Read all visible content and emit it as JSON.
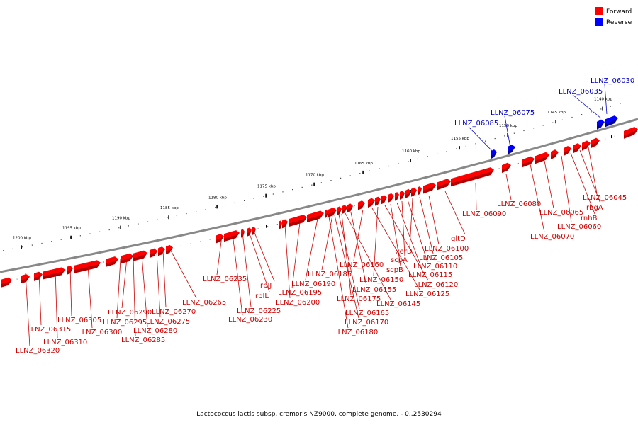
{
  "legend": [
    {
      "label": "Forward",
      "color": "#ff0000"
    },
    {
      "label": "Reverse",
      "color": "#0000ff"
    }
  ],
  "colors": {
    "forward": "#ff0000",
    "forward_dark": "#b00000",
    "reverse": "#0000ff",
    "reverse_dark": "#0000a0",
    "backbone": "#888888",
    "forward_label": "#cc0000",
    "reverse_label": "#0000cc"
  },
  "kbp_ticks": [
    "1200 kbp",
    "1195 kbp",
    "1190 kbp",
    "1185 kbp",
    "1180 kbp",
    "1175 kbp",
    "1170 kbp",
    "1165 kbp",
    "1160 kbp",
    "1155 kbp",
    "1150 kbp",
    "1145 kbp",
    "1140 kbp"
  ],
  "gene_labels": [
    {
      "text": "LLNZ_06030",
      "strand": "reverse"
    },
    {
      "text": "LLNZ_06035",
      "strand": "reverse"
    },
    {
      "text": "LLNZ_06075",
      "strand": "reverse"
    },
    {
      "text": "LLNZ_06085",
      "strand": "reverse"
    },
    {
      "text": "LLNZ_06045",
      "strand": "forward"
    },
    {
      "text": "rbgA",
      "strand": "forward"
    },
    {
      "text": "rnhB",
      "strand": "forward"
    },
    {
      "text": "LLNZ_06060",
      "strand": "forward"
    },
    {
      "text": "LLNZ_06065",
      "strand": "forward"
    },
    {
      "text": "LLNZ_06070",
      "strand": "forward"
    },
    {
      "text": "LLNZ_06080",
      "strand": "forward"
    },
    {
      "text": "LLNZ_06090",
      "strand": "forward"
    },
    {
      "text": "gltD",
      "strand": "forward"
    },
    {
      "text": "LLNZ_06100",
      "strand": "forward"
    },
    {
      "text": "LLNZ_06105",
      "strand": "forward"
    },
    {
      "text": "xerD",
      "strand": "forward"
    },
    {
      "text": "LLNZ_06110",
      "strand": "forward"
    },
    {
      "text": "scpA",
      "strand": "forward"
    },
    {
      "text": "LLNZ_06115",
      "strand": "forward"
    },
    {
      "text": "scpB",
      "strand": "forward"
    },
    {
      "text": "LLNZ_06120",
      "strand": "forward"
    },
    {
      "text": "LLNZ_06150",
      "strand": "forward"
    },
    {
      "text": "LLNZ_06125",
      "strand": "forward"
    },
    {
      "text": "LLNZ_06160",
      "strand": "forward"
    },
    {
      "text": "LLNZ_06155",
      "strand": "forward"
    },
    {
      "text": "LLNZ_06145",
      "strand": "forward"
    },
    {
      "text": "LLNZ_06185",
      "strand": "forward"
    },
    {
      "text": "LLNZ_06175",
      "strand": "forward"
    },
    {
      "text": "LLNZ_06165",
      "strand": "forward"
    },
    {
      "text": "LLNZ_06170",
      "strand": "forward"
    },
    {
      "text": "LLNZ_06180",
      "strand": "forward"
    },
    {
      "text": "LLNZ_06190",
      "strand": "forward"
    },
    {
      "text": "LLNZ_06195",
      "strand": "forward"
    },
    {
      "text": "LLNZ_06200",
      "strand": "forward"
    },
    {
      "text": "rpIJ",
      "strand": "forward"
    },
    {
      "text": "rpIL",
      "strand": "forward"
    },
    {
      "text": "LLNZ_06225",
      "strand": "forward"
    },
    {
      "text": "LLNZ_06230",
      "strand": "forward"
    },
    {
      "text": "LLNZ_06235",
      "strand": "forward"
    },
    {
      "text": "LLNZ_06265",
      "strand": "forward"
    },
    {
      "text": "LLNZ_06270",
      "strand": "forward"
    },
    {
      "text": "LLNZ_06275",
      "strand": "forward"
    },
    {
      "text": "LLNZ_06280",
      "strand": "forward"
    },
    {
      "text": "LLNZ_06285",
      "strand": "forward"
    },
    {
      "text": "LLNZ_06290",
      "strand": "forward"
    },
    {
      "text": "LLNZ_06295",
      "strand": "forward"
    },
    {
      "text": "LLNZ_06300",
      "strand": "forward"
    },
    {
      "text": "LLNZ_06305",
      "strand": "forward"
    },
    {
      "text": "LLNZ_06310",
      "strand": "forward"
    },
    {
      "text": "LLNZ_06315",
      "strand": "forward"
    },
    {
      "text": "LLNZ_06320",
      "strand": "forward"
    }
  ],
  "caption": "Lactococcus lactis subsp. cremoris NZ9000, complete genome. - 0..2530294"
}
